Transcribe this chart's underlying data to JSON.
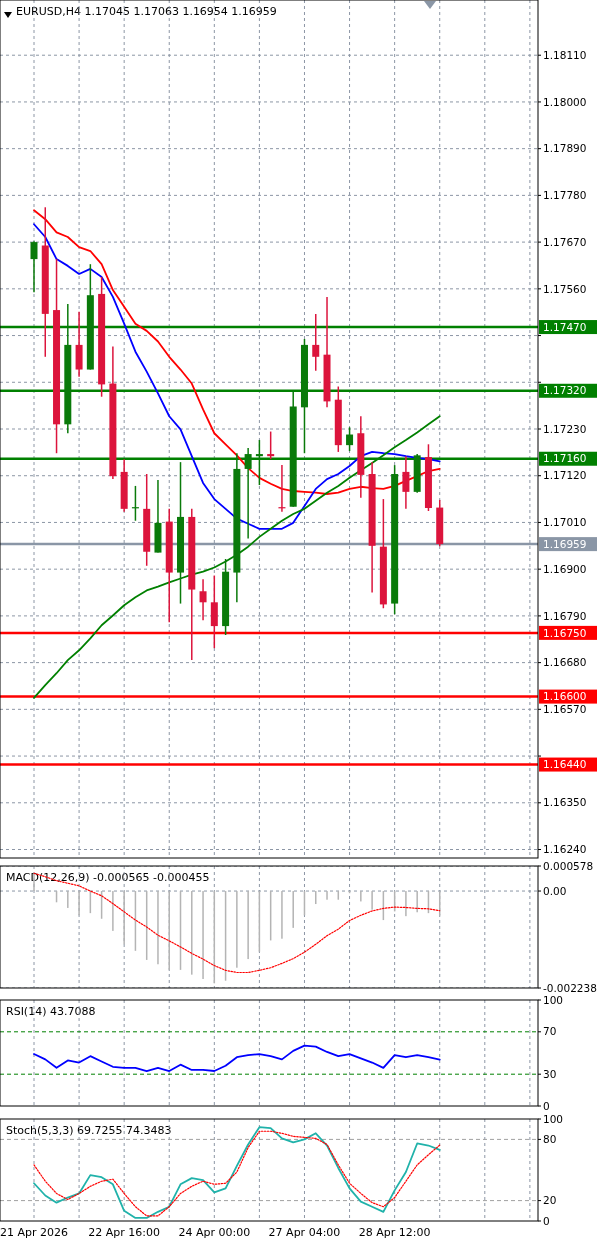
{
  "chart_data": [
    {
      "type": "candlestick",
      "title": "EURUSD,H4 1.17045 1.17063 1.16954 1.16959",
      "tick_labels": "y",
      "grid": true,
      "categories": [
        null,
        null,
        null,
        null,
        null,
        null,
        null,
        null,
        null,
        null,
        null,
        null,
        null,
        null,
        null,
        null,
        null,
        null,
        null,
        null,
        null,
        null,
        null,
        null,
        null,
        null,
        null,
        null,
        null,
        null,
        null,
        null,
        null,
        null,
        null,
        null,
        null
      ],
      "ylim": [
        1.1622,
        1.1824
      ],
      "yticks": [
        {
          "value": 1.1811,
          "label": "1.18110"
        },
        {
          "value": 1.18,
          "label": "1.18000"
        },
        {
          "value": 1.1789,
          "label": "1.17890"
        },
        {
          "value": 1.1778,
          "label": "1.17780"
        },
        {
          "value": 1.1767,
          "label": "1.17670"
        },
        {
          "value": 1.1756,
          "label": "1.17560"
        },
        {
          "value": 1.1745,
          "label": null
        },
        {
          "value": 1.1734,
          "label": null
        },
        {
          "value": 1.1723,
          "label": "1.17230"
        },
        {
          "value": 1.1712,
          "label": "1.17120"
        },
        {
          "value": 1.1701,
          "label": "1.17010"
        },
        {
          "value": 1.169,
          "label": "1.16900"
        },
        {
          "value": 1.1679,
          "label": "1.16790"
        },
        {
          "value": 1.1668,
          "label": "1.16680"
        },
        {
          "value": 1.1657,
          "label": "1.16570"
        },
        {
          "value": 1.1646,
          "label": null
        },
        {
          "value": 1.1635,
          "label": "1.16350"
        },
        {
          "value": 1.1624,
          "label": "1.16240"
        }
      ],
      "ohlc": [
        [
          1.1763,
          1.17672,
          1.17552,
          1.1767
        ],
        [
          1.17662,
          1.17752,
          1.174,
          1.17501
        ],
        [
          1.1751,
          1.1763,
          1.17173,
          1.17241
        ],
        [
          1.17241,
          1.17524,
          1.1722,
          1.17428
        ],
        [
          1.17428,
          1.17506,
          1.17353,
          1.1737
        ],
        [
          1.1737,
          1.17618,
          1.1737,
          1.17545
        ],
        [
          1.17548,
          1.17588,
          1.17306,
          1.17335
        ],
        [
          1.17337,
          1.17424,
          1.17112,
          1.17119
        ],
        [
          1.17129,
          1.17159,
          1.17035,
          1.17042
        ],
        [
          1.17044,
          1.17096,
          1.17014,
          1.17046
        ],
        [
          1.17042,
          1.17124,
          1.16908,
          1.16941
        ],
        [
          1.16939,
          1.1711,
          1.16939,
          1.17009
        ],
        [
          1.17012,
          1.17042,
          1.16775,
          1.16892
        ],
        [
          1.16892,
          1.17152,
          1.16819,
          1.17023
        ],
        [
          1.17023,
          1.17042,
          1.16686,
          1.16852
        ],
        [
          1.16848,
          1.16876,
          1.1678,
          1.16822
        ],
        [
          1.16822,
          1.16885,
          1.16714,
          1.16766
        ],
        [
          1.16766,
          1.16924,
          1.16745,
          1.16894
        ],
        [
          1.16892,
          1.17173,
          1.16822,
          1.17136
        ],
        [
          1.17136,
          1.17185,
          1.16972,
          1.17171
        ],
        [
          1.17166,
          1.17204,
          1.17098,
          1.17171
        ],
        [
          1.17171,
          1.17224,
          1.17159,
          1.17166
        ],
        [
          1.17046,
          1.17145,
          1.17035,
          1.17044
        ],
        [
          1.17047,
          1.17318,
          1.17047,
          1.17283
        ],
        [
          1.17281,
          1.17442,
          1.17173,
          1.17428
        ],
        [
          1.17428,
          1.17501,
          1.17367,
          1.174
        ],
        [
          1.17405,
          1.17541,
          1.17281,
          1.17295
        ],
        [
          1.17299,
          1.1733,
          1.17176,
          1.17192
        ],
        [
          1.17192,
          1.17234,
          1.17178,
          1.17217
        ],
        [
          1.1722,
          1.1726,
          1.17068,
          1.17122
        ],
        [
          1.17124,
          1.17152,
          1.16845,
          1.16955
        ],
        [
          1.16953,
          1.17065,
          1.16808,
          1.16817
        ],
        [
          1.16819,
          1.17145,
          1.16794,
          1.17124
        ],
        [
          1.17129,
          1.17166,
          1.17042,
          1.17082
        ],
        [
          1.17082,
          1.17171,
          1.1708,
          1.17168
        ],
        [
          1.17164,
          1.17194,
          1.17037,
          1.17044
        ],
        [
          1.17045,
          1.17063,
          1.16954,
          1.16959
        ]
      ],
      "colors": [
        "#0a7a0a",
        "#dc143c",
        "#dc143c",
        "#0a7a0a",
        "#dc143c",
        "#0a7a0a",
        "#dc143c",
        "#dc143c",
        "#dc143c",
        "#0a7a0a",
        "#dc143c",
        "#0a7a0a",
        "#dc143c",
        "#0a7a0a",
        "#dc143c",
        "#dc143c",
        "#dc143c",
        "#0a7a0a",
        "#0a7a0a",
        "#0a7a0a",
        "#0a7a0a",
        "#dc143c",
        "#dc143c",
        "#0a7a0a",
        "#0a7a0a",
        "#dc143c",
        "#dc143c",
        "#dc143c",
        "#0a7a0a",
        "#dc143c",
        "#dc143c",
        "#dc143c",
        "#0a7a0a",
        "#dc143c",
        "#0a7a0a",
        "#dc143c",
        "#dc143c"
      ],
      "series": [
        {
          "type": "line",
          "color": "#ff0000",
          "values": [
            1.17745,
            1.17724,
            1.17693,
            1.17682,
            1.17658,
            1.17649,
            1.17618,
            1.17557,
            1.17518,
            1.17478,
            1.17461,
            1.17436,
            1.174,
            1.1737,
            1.17337,
            1.17276,
            1.1722,
            1.17194,
            1.17168,
            1.17138,
            1.17115,
            1.17101,
            1.17089,
            1.17084,
            1.17082,
            1.1708,
            1.17077,
            1.1708,
            1.17089,
            1.17094,
            1.17091,
            1.17089,
            1.17096,
            1.17108,
            1.17119,
            1.17131,
            1.17136
          ]
        },
        {
          "type": "line",
          "color": "#0000ff",
          "values": [
            1.17712,
            1.17682,
            1.1763,
            1.17614,
            1.17595,
            1.17607,
            1.17588,
            1.17541,
            1.17478,
            1.17412,
            1.17365,
            1.17314,
            1.1726,
            1.17229,
            1.17166,
            1.17103,
            1.17065,
            1.17042,
            1.17019,
            1.17007,
            1.16995,
            1.16995,
            1.16995,
            1.17009,
            1.17049,
            1.17089,
            1.17112,
            1.17124,
            1.17143,
            1.17166,
            1.17176,
            1.17173,
            1.17171,
            1.17166,
            1.17162,
            1.17159,
            1.17154
          ]
        },
        {
          "type": "line",
          "color": "#008000",
          "values": [
            1.16597,
            1.16627,
            1.16655,
            1.16686,
            1.16709,
            1.16737,
            1.16768,
            1.16791,
            1.16815,
            1.16834,
            1.1685,
            1.16859,
            1.16869,
            1.16878,
            1.16887,
            1.16894,
            1.16904,
            1.16918,
            1.16934,
            1.16953,
            1.16976,
            1.16995,
            1.17014,
            1.1703,
            1.17042,
            1.17061,
            1.1708,
            1.17096,
            1.17115,
            1.17133,
            1.1715,
            1.17168,
            1.17187,
            1.17204,
            1.17222,
            1.17241,
            1.1726
          ]
        }
      ],
      "ref_lines": [
        {
          "axis": "y",
          "value": 1.1747,
          "label": "1.17470",
          "color": "#008000"
        },
        {
          "axis": "y",
          "value": 1.1732,
          "label": "1.17320",
          "color": "#008000"
        },
        {
          "axis": "y",
          "value": 1.1716,
          "label": "1.17160",
          "color": "#008000"
        },
        {
          "axis": "y",
          "value": 1.16959,
          "label": "1.16959",
          "color": "#8a96a6"
        },
        {
          "axis": "y",
          "value": 1.1675,
          "label": "1.16750",
          "color": "#ff0000"
        },
        {
          "axis": "y",
          "value": 1.166,
          "label": "1.16600",
          "color": "#ff0000"
        },
        {
          "axis": "y",
          "value": 1.1644,
          "label": "1.16440",
          "color": "#ff0000"
        }
      ]
    },
    {
      "type": "bar",
      "title": "MACD(12,26,9) -0.000565 -0.000455",
      "tick_labels": "y",
      "grid": true,
      "categories": [
        null,
        null,
        null,
        null,
        null,
        null,
        null,
        null,
        null,
        null,
        null,
        null,
        null,
        null,
        null,
        null,
        null,
        null,
        null,
        null,
        null,
        null,
        null,
        null,
        null,
        null,
        null,
        null,
        null,
        null,
        null,
        null,
        null,
        null,
        null,
        null,
        null
      ],
      "ylim": [
        -0.002238,
        0.000578
      ],
      "yticks": [
        0.000578,
        {
          "value": 0,
          "label": "0.00"
        },
        -0.002238
      ],
      "series": [
        {
          "type": "bar",
          "color": "#b4b4b4",
          "values": [
            0.0004,
            0,
            -0.00026,
            -0.00039,
            -0.00056,
            -0.00051,
            -0.00064,
            -0.00092,
            -0.00123,
            -0.00138,
            -0.00159,
            -0.00169,
            -0.00182,
            -0.00182,
            -0.00193,
            -0.00203,
            -0.00213,
            -0.00207,
            -0.00177,
            -0.00157,
            -0.0014,
            -0.00114,
            -0.0011,
            -0.00085,
            -0.00056,
            -0.0003,
            -0.0002,
            -0.0002,
            -5e-05,
            -0.00024,
            -0.00043,
            -0.00067,
            -0.00047,
            -0.00058,
            -0.00049,
            -0.00051,
            -0.000565
          ]
        },
        {
          "type": "line",
          "color": "#ff0000",
          "line_style": "dotted",
          "values": [
            0.00041,
            0.00033,
            0.00024,
            0.00018,
            0.00012,
            0,
            -0.00011,
            -0.00029,
            -0.00048,
            -0.00067,
            -0.00083,
            -0.00102,
            -0.00115,
            -0.00129,
            -0.00144,
            -0.00157,
            -0.00172,
            -0.00183,
            -0.00188,
            -0.00188,
            -0.00183,
            -0.00177,
            -0.00167,
            -0.00156,
            -0.00141,
            -0.00123,
            -0.00103,
            -0.00088,
            -0.00068,
            -0.00056,
            -0.00046,
            -0.0004,
            -0.00037,
            -0.00038,
            -0.0004,
            -0.00041,
            -0.000455
          ]
        }
      ]
    },
    {
      "type": "line",
      "title": "RSI(14) 43.7088",
      "tick_labels": "y",
      "grid": "x",
      "categories": [
        null,
        null,
        null,
        null,
        null,
        null,
        null,
        null,
        null,
        null,
        null,
        null,
        null,
        null,
        null,
        null,
        null,
        null,
        null,
        null,
        null,
        null,
        null,
        null,
        null,
        null,
        null,
        null,
        null,
        null,
        null,
        null,
        null,
        null,
        null,
        null,
        null
      ],
      "ylim": [
        0,
        100
      ],
      "yticks": [
        100,
        70,
        30,
        0
      ],
      "series": [
        {
          "color": "#0000ff",
          "values": [
            49,
            44,
            36,
            43,
            41,
            47,
            42,
            37,
            36,
            36,
            33,
            36,
            33,
            39,
            34,
            34,
            33,
            38,
            46,
            48,
            49,
            47,
            44,
            52,
            57,
            56,
            51,
            47,
            49,
            45,
            41,
            36,
            48,
            46,
            48,
            46,
            43.7088
          ]
        }
      ],
      "ref_lines": [
        {
          "axis": "y",
          "value": 70,
          "color": "#008000",
          "line_style": "dashed"
        },
        {
          "axis": "y",
          "value": 30,
          "color": "#008000",
          "line_style": "dashed"
        }
      ]
    },
    {
      "type": "line",
      "title": "Stoch(5,3,3) 69.7255 74.3483",
      "grid": "x",
      "categories": [
        "21 Apr 2026",
        null,
        null,
        null,
        null,
        null,
        null,
        null,
        "22 Apr 16:00",
        null,
        null,
        null,
        null,
        null,
        null,
        null,
        "24 Apr 00:00",
        null,
        null,
        null,
        null,
        null,
        null,
        null,
        "27 Apr 04:00",
        null,
        null,
        null,
        null,
        null,
        null,
        null,
        "28 Apr 12:00",
        null,
        null,
        null,
        null
      ],
      "ylim": [
        0,
        100
      ],
      "yticks": [
        100,
        80,
        20,
        0
      ],
      "series": [
        {
          "color": "#20b2aa",
          "values": [
            37,
            25,
            18,
            23,
            27,
            45,
            43,
            36,
            10,
            3,
            3,
            9,
            14,
            36,
            42,
            40,
            28,
            32,
            54,
            75,
            92,
            91,
            81,
            77,
            80,
            86,
            74,
            52,
            32,
            19,
            14,
            9,
            30,
            48,
            76,
            74,
            69.7255
          ]
        },
        {
          "color": "#ff0000",
          "line_style": "dotted",
          "values": [
            55,
            39,
            27,
            21,
            27,
            34,
            39,
            41,
            27,
            14,
            5,
            5,
            14,
            27,
            34,
            39,
            36,
            37,
            48,
            72,
            88,
            88,
            86,
            83,
            82,
            81,
            75,
            55,
            37,
            27,
            18,
            14,
            23,
            39,
            55,
            65,
            74.3483
          ]
        }
      ],
      "ref_lines": [
        {
          "axis": "y",
          "value": 80,
          "color": "#a0a0a0",
          "line_style": "dashed"
        },
        {
          "axis": "y",
          "value": 20,
          "color": "#a0a0a0",
          "line_style": "dashed"
        }
      ]
    }
  ]
}
